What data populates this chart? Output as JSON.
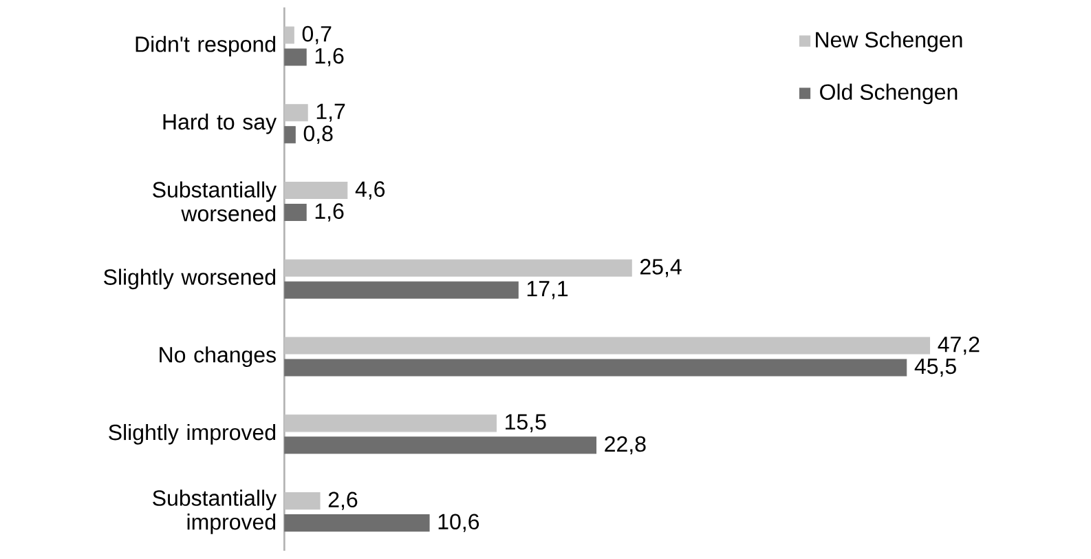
{
  "chart_data": {
    "type": "bar",
    "orientation": "horizontal",
    "categories": [
      "Didn't respond",
      "Hard to say",
      "Substantially worsened",
      "Slightly worsened",
      "No changes",
      "Slightly improved",
      "Substantially improved"
    ],
    "series": [
      {
        "name": "New Schengen",
        "color": "#c4c4c4",
        "values": [
          0.7,
          1.7,
          4.6,
          25.4,
          47.2,
          15.5,
          2.6
        ],
        "value_labels": [
          "0,7",
          "1,7",
          "4,6",
          "25,4",
          "47,2",
          "15,5",
          "2,6"
        ]
      },
      {
        "name": "Old Schengen",
        "color": "#6e6e6e",
        "values": [
          1.6,
          0.8,
          1.6,
          17.1,
          45.5,
          22.8,
          10.6
        ],
        "value_labels": [
          "1,6",
          "0,8",
          "1,6",
          "17,1",
          "45,5",
          "22,8",
          "10,6"
        ]
      }
    ],
    "legend": "top right",
    "grid": false,
    "tick_labels": "y"
  }
}
